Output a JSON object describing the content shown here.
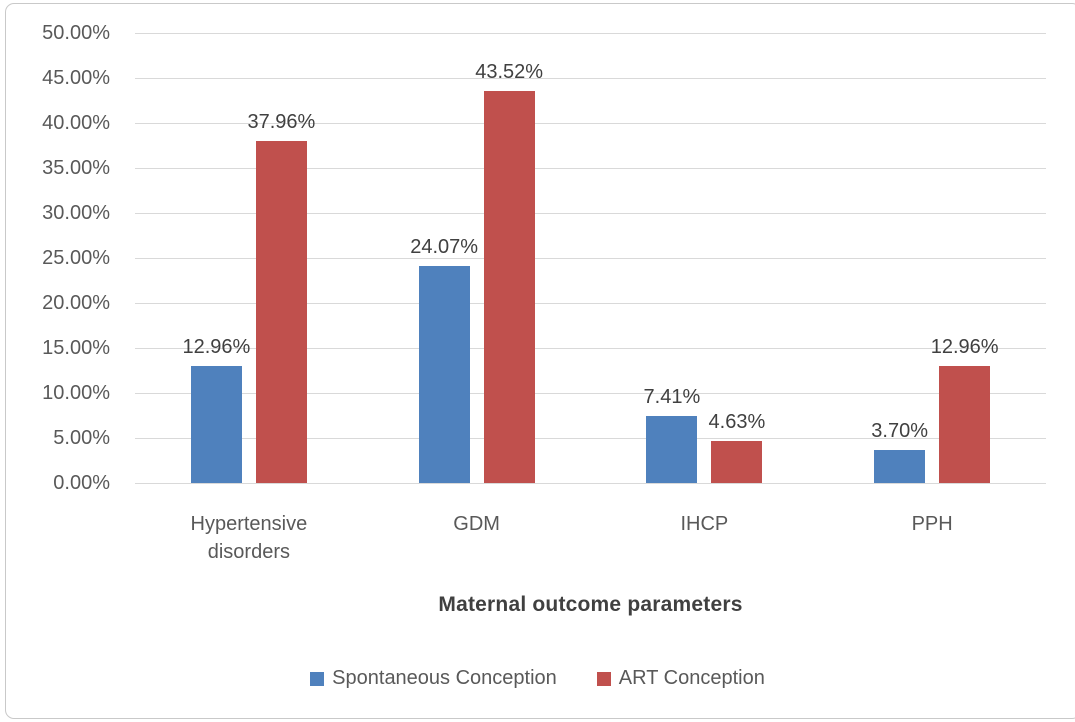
{
  "chart_data": {
    "type": "bar",
    "title": "",
    "categories": [
      "Hypertensive disorders",
      "GDM",
      "IHCP",
      "PPH"
    ],
    "series": [
      {
        "name": "Spontaneous Conception",
        "color": "#4F81BD",
        "values": [
          12.96,
          24.07,
          7.41,
          3.7
        ],
        "labels": [
          "12.96%",
          "24.07%",
          "7.41%",
          "3.70%"
        ]
      },
      {
        "name": "ART Conception",
        "color": "#C0504D",
        "values": [
          37.96,
          43.52,
          4.63,
          12.96
        ],
        "labels": [
          "37.96%",
          "43.52%",
          "4.63%",
          "12.96%"
        ]
      }
    ],
    "xlabel": "Maternal outcome parameters",
    "ylabel": "",
    "ylim": [
      0,
      50
    ],
    "ytick_step": 5,
    "ytick_labels": [
      "0.00%",
      "5.00%",
      "10.00%",
      "15.00%",
      "20.00%",
      "25.00%",
      "30.00%",
      "35.00%",
      "40.00%",
      "45.00%",
      "50.00%"
    ],
    "grid": true,
    "legend_position": "bottom",
    "data_label_position": "outside-end"
  },
  "colors": {
    "gridline": "#D9D9D9",
    "axis_text": "#595959",
    "data_label_text": "#404040",
    "border": "#C9C9C9",
    "background": "#FFFFFF"
  }
}
